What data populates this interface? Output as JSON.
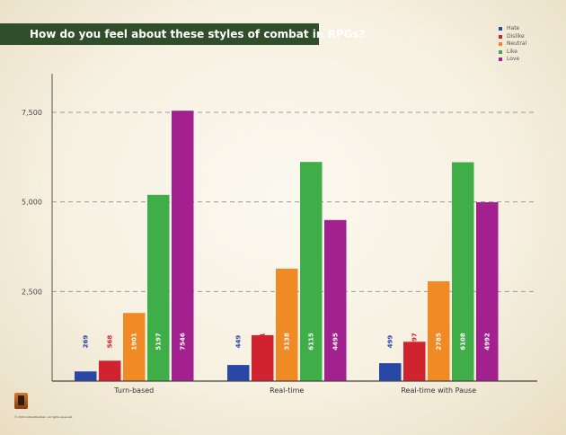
{
  "title": "How do you feel about these styles of combat in RPGs?",
  "copyright": "© 2015 inXile/Obsidian. All rights reserved.",
  "chart_data": {
    "type": "bar",
    "categories": [
      "Turn-based",
      "Real-time",
      "Real-time with Pause"
    ],
    "series": [
      {
        "name": "Hate",
        "color": "#2847a6",
        "values": [
          269,
          449,
          499
        ]
      },
      {
        "name": "Dislike",
        "color": "#d1232f",
        "values": [
          568,
          1281,
          1097
        ]
      },
      {
        "name": "Neutral",
        "color": "#f08a24",
        "values": [
          1901,
          3138,
          2785
        ]
      },
      {
        "name": "Like",
        "color": "#3fae49",
        "values": [
          5197,
          6115,
          6108
        ]
      },
      {
        "name": "Love",
        "color": "#a3218e",
        "values": [
          7546,
          4495,
          4992
        ]
      }
    ],
    "yticks": [
      2500,
      5000,
      7500
    ],
    "ytick_labels": [
      "2,500",
      "5,000",
      "7,500"
    ],
    "ylim": [
      0,
      8500
    ],
    "grid": true,
    "legend_position": "top-right",
    "xlabel": "",
    "ylabel": ""
  }
}
